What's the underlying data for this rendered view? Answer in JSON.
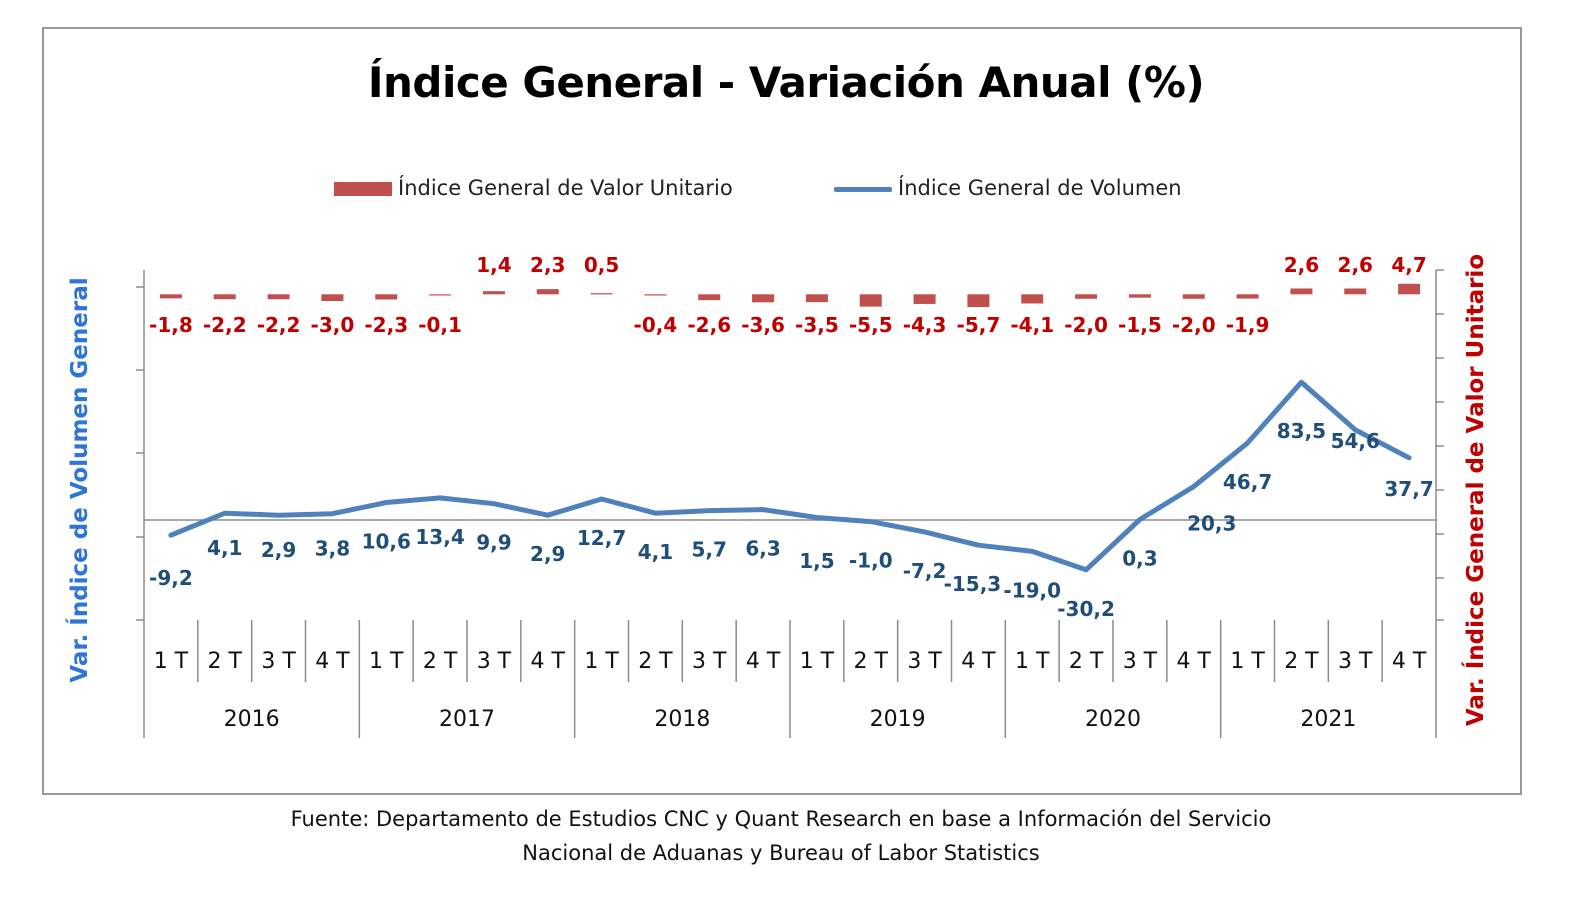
{
  "chart_data": {
    "type": "bar",
    "title": "Índice General - Variación Anual (%)",
    "ylabel_left": "Var. Índice de Volumen General",
    "ylabel_right": "Var. Índice General de Valor Unitario",
    "legend_position": "top",
    "years": [
      "2016",
      "2017",
      "2018",
      "2019",
      "2020",
      "2021"
    ],
    "categories": [
      "1 T",
      "2 T",
      "3 T",
      "4 T",
      "1 T",
      "2 T",
      "3 T",
      "4 T",
      "1 T",
      "2 T",
      "3 T",
      "4 T",
      "1 T",
      "2 T",
      "3 T",
      "4 T",
      "1 T",
      "2 T",
      "3 T",
      "4 T",
      "1 T",
      "2 T",
      "3 T",
      "4 T"
    ],
    "series": [
      {
        "name": "Índice General de Valor Unitario",
        "type": "bar",
        "axis": "right",
        "color": "#c0504d",
        "values": [
          -1.8,
          -2.2,
          -2.2,
          -3.0,
          -2.3,
          -0.1,
          1.4,
          2.3,
          0.5,
          -0.4,
          -2.6,
          -3.6,
          -3.5,
          -5.5,
          -4.3,
          -5.7,
          -4.1,
          -2.0,
          -1.5,
          -2.0,
          -1.9,
          2.6,
          2.6,
          4.7
        ],
        "labels": [
          "-1,8",
          "-2,2",
          "-2,2",
          "-3,0",
          "-2,3",
          "-0,1",
          "1,4",
          "2,3",
          "0,5",
          "-0,4",
          "-2,6",
          "-3,6",
          "-3,5",
          "-5,5",
          "-4,3",
          "-5,7",
          "-4,1",
          "-2,0",
          "-1,5",
          "-2,0",
          "-1,9",
          "2,6",
          "2,6",
          "4,7"
        ]
      },
      {
        "name": "Índice General de Volumen",
        "type": "line",
        "axis": "left",
        "color": "#4f81bd",
        "values": [
          -9.2,
          4.1,
          2.9,
          3.8,
          10.6,
          13.4,
          9.9,
          2.9,
          12.7,
          4.1,
          5.7,
          6.3,
          1.5,
          -1.0,
          -7.2,
          -15.3,
          -19.0,
          -30.2,
          0.3,
          20.3,
          46.7,
          83.5,
          54.6,
          37.7
        ],
        "labels": [
          "-9,2",
          "4,1",
          "2,9",
          "3,8",
          "10,6",
          "13,4",
          "9,9",
          "2,9",
          "12,7",
          "4,1",
          "5,7",
          "6,3",
          "1,5",
          "-1,0",
          "-7,2",
          "-15,3",
          "-19,0",
          "-30,2",
          "0,3",
          "20,3",
          "46,7",
          "83,5",
          "54,6",
          "37,7"
        ]
      }
    ]
  },
  "source": {
    "line1": "Fuente: Departamento de Estudios CNC y Quant Research en base a Información del Servicio",
    "line2": "Nacional de Aduanas y Bureau of Labor Statistics"
  }
}
